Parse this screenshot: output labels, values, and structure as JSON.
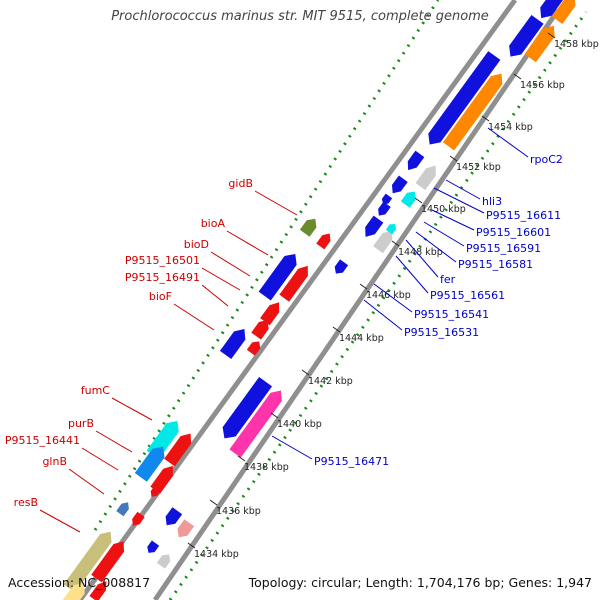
{
  "title": "Prochlorococcus marinus str. MIT 9515, complete genome",
  "accession_text": "Accession: NC_008817",
  "summary_text": "Topology: circular; Length: 1,704,176 bp; Genes: 1,947",
  "colors": {
    "left_label": "#cc0000",
    "right_label": "#0000cc",
    "ruler_text": "#222222",
    "backbone": "#8f8f8f",
    "dots": "#1a8a1a"
  },
  "ticks": [
    {
      "label": "1434 kbp"
    },
    {
      "label": "1436 kbp"
    },
    {
      "label": "1438 kbp"
    },
    {
      "label": "1440 kbp"
    },
    {
      "label": "1442 kbp"
    },
    {
      "label": "1444 kbp"
    },
    {
      "label": "1446 kbp"
    },
    {
      "label": "1448 kbp"
    },
    {
      "label": "1450 kbp"
    },
    {
      "label": "1452 kbp"
    },
    {
      "label": "1454 kbp"
    },
    {
      "label": "1456 kbp"
    },
    {
      "label": "1458 kbp"
    }
  ],
  "left_labels": [
    {
      "text": "gidB"
    },
    {
      "text": "bioA"
    },
    {
      "text": "bioD"
    },
    {
      "text": "P9515_16501"
    },
    {
      "text": "P9515_16491"
    },
    {
      "text": "bioF"
    },
    {
      "text": "fumC"
    },
    {
      "text": "purB"
    },
    {
      "text": "P9515_16441"
    },
    {
      "text": "glnB"
    },
    {
      "text": "resB"
    }
  ],
  "right_labels": [
    {
      "text": "rpoC2"
    },
    {
      "text": "hli3"
    },
    {
      "text": "P9515_16611"
    },
    {
      "text": "P9515_16601"
    },
    {
      "text": "P9515_16591"
    },
    {
      "text": "P9515_16581"
    },
    {
      "text": "fer"
    },
    {
      "text": "P9515_16561"
    },
    {
      "text": "P9515_16541"
    },
    {
      "text": "P9515_16531"
    },
    {
      "text": "P9515_16471"
    }
  ]
}
